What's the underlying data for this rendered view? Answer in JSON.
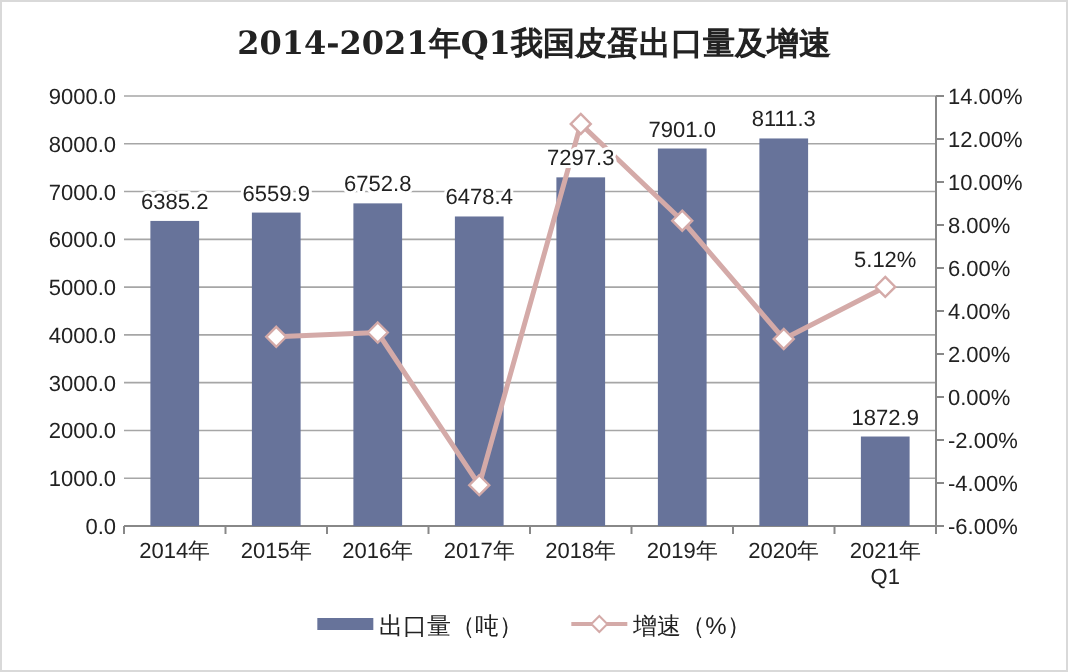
{
  "chart_data": {
    "type": "bar",
    "title": "2014-2021年Q1我国皮蛋出口量及增速",
    "categories": [
      "2014年",
      "2015年",
      "2016年",
      "2017年",
      "2018年",
      "2019年",
      "2020年",
      "2021年Q1"
    ],
    "series": [
      {
        "name": "出口量（吨）",
        "color": "#67739a",
        "values": [
          6385.2,
          6559.9,
          6752.8,
          6478.4,
          7297.3,
          7901.0,
          8111.3,
          1872.9
        ],
        "value_labels": [
          "6385.2",
          "6559.9",
          "6752.8",
          "6478.4",
          "7297.3",
          "7901.0",
          "8111.3",
          "1872.9"
        ]
      },
      {
        "name": "增速（%）",
        "type": "line",
        "axis": "y2",
        "color": "#d4aaa8",
        "marker": "diamond",
        "values": [
          null,
          2.8,
          3.0,
          -4.1,
          12.7,
          8.2,
          2.7,
          5.12
        ],
        "value_labels": [
          null,
          null,
          null,
          null,
          null,
          null,
          null,
          "5.12%"
        ]
      }
    ],
    "ylim": [
      0,
      9000
    ],
    "yticks": [
      {
        "value": 0,
        "label": "0.0"
      },
      {
        "value": 1000,
        "label": "1000.0"
      },
      {
        "value": 2000,
        "label": "2000.0"
      },
      {
        "value": 3000,
        "label": "3000.0"
      },
      {
        "value": 4000,
        "label": "4000.0"
      },
      {
        "value": 5000,
        "label": "5000.0"
      },
      {
        "value": 6000,
        "label": "6000.0"
      },
      {
        "value": 7000,
        "label": "7000.0"
      },
      {
        "value": 8000,
        "label": "8000.0"
      },
      {
        "value": 9000,
        "label": "9000.0"
      }
    ],
    "y2lim": [
      -6,
      14
    ],
    "y2ticks": [
      {
        "value": -6,
        "label": "-6.00%"
      },
      {
        "value": -4,
        "label": "-4.00%"
      },
      {
        "value": -2,
        "label": "-2.00%"
      },
      {
        "value": 0,
        "label": "0.00%"
      },
      {
        "value": 2,
        "label": "2.00%"
      },
      {
        "value": 4,
        "label": "4.00%"
      },
      {
        "value": 6,
        "label": "6.00%"
      },
      {
        "value": 8,
        "label": "8.00%"
      },
      {
        "value": 10,
        "label": "10.00%"
      },
      {
        "value": 12,
        "label": "12.00%"
      },
      {
        "value": 14,
        "label": "14.00%"
      }
    ],
    "grid": "y",
    "legend": "bottom"
  }
}
